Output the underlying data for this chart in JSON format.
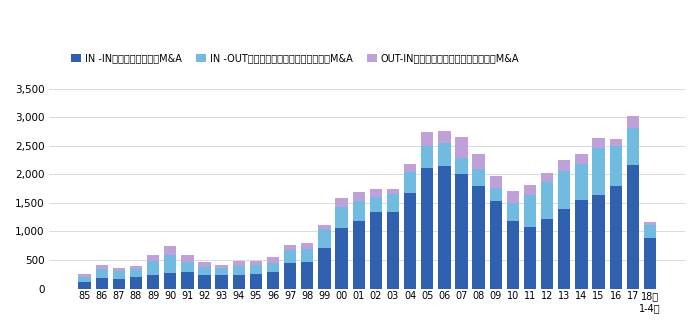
{
  "years": [
    "85",
    "86",
    "87",
    "88",
    "89",
    "90",
    "91",
    "92",
    "93",
    "94",
    "95",
    "96",
    "97",
    "98",
    "99",
    "00",
    "01",
    "02",
    "03",
    "04",
    "05",
    "06",
    "07",
    "08",
    "09",
    "10",
    "11",
    "12",
    "13",
    "14",
    "15",
    "16",
    "17",
    "18年\n1-4月"
  ],
  "in_in": [
    120,
    180,
    170,
    195,
    235,
    280,
    285,
    240,
    230,
    240,
    255,
    295,
    455,
    465,
    705,
    1060,
    1185,
    1340,
    1340,
    1665,
    2110,
    2145,
    2010,
    1800,
    1530,
    1185,
    1075,
    1215,
    1395,
    1555,
    1640,
    1800,
    2160,
    890
  ],
  "in_out": [
    75,
    155,
    130,
    155,
    250,
    300,
    185,
    145,
    135,
    155,
    155,
    155,
    225,
    230,
    330,
    360,
    355,
    260,
    320,
    370,
    385,
    400,
    270,
    295,
    225,
    320,
    560,
    660,
    670,
    620,
    830,
    690,
    650,
    230
  ],
  "out_in": [
    55,
    75,
    60,
    40,
    105,
    160,
    115,
    75,
    45,
    80,
    70,
    95,
    85,
    100,
    75,
    165,
    155,
    145,
    85,
    155,
    255,
    220,
    375,
    265,
    215,
    195,
    170,
    150,
    190,
    185,
    170,
    125,
    205,
    45
  ],
  "color_in_in": "#3060b0",
  "color_in_out": "#70bce0",
  "color_out_in": "#c0a0d8",
  "legend_labels": [
    "IN -IN：日本企業同士のM&A",
    "IN -OUT：日本企業による外国企業へのM&A",
    "OUT-IN：外国企業による日本企業へのM&A"
  ],
  "ylim": [
    0,
    3500
  ],
  "yticks": [
    0,
    500,
    1000,
    1500,
    2000,
    2500,
    3000,
    3500
  ],
  "background_color": "#ffffff",
  "grid_color": "#cccccc"
}
